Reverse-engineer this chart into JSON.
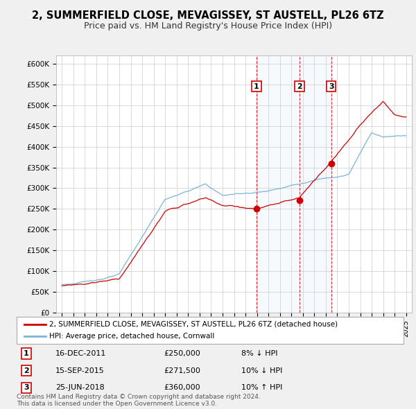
{
  "title": "2, SUMMERFIELD CLOSE, MEVAGISSEY, ST AUSTELL, PL26 6TZ",
  "subtitle": "Price paid vs. HM Land Registry's House Price Index (HPI)",
  "title_fontsize": 10.5,
  "subtitle_fontsize": 9,
  "ylim": [
    0,
    620000
  ],
  "yticks": [
    0,
    50000,
    100000,
    150000,
    200000,
    250000,
    300000,
    350000,
    400000,
    450000,
    500000,
    550000,
    600000
  ],
  "ytick_labels": [
    "£0",
    "£50K",
    "£100K",
    "£150K",
    "£200K",
    "£250K",
    "£300K",
    "£350K",
    "£400K",
    "£450K",
    "£500K",
    "£550K",
    "£600K"
  ],
  "transactions": [
    {
      "num": 1,
      "date": "16-DEC-2011",
      "price": 250000,
      "x_year": 2011.96,
      "hpi_rel": "8% ↓ HPI"
    },
    {
      "num": 2,
      "date": "15-SEP-2015",
      "price": 271500,
      "x_year": 2015.71,
      "hpi_rel": "10% ↓ HPI"
    },
    {
      "num": 3,
      "date": "25-JUN-2018",
      "price": 360000,
      "x_year": 2018.48,
      "hpi_rel": "10% ↑ HPI"
    }
  ],
  "hpi_color": "#7ab4d8",
  "price_color": "#cc0000",
  "background_color": "#f0f0f0",
  "plot_bg_color": "#ffffff",
  "shade_color": "#ddeeff",
  "legend_label_price": "2, SUMMERFIELD CLOSE, MEVAGISSEY, ST AUSTELL, PL26 6TZ (detached house)",
  "legend_label_hpi": "HPI: Average price, detached house, Cornwall",
  "footnote": "Contains HM Land Registry data © Crown copyright and database right 2024.\nThis data is licensed under the Open Government Licence v3.0.",
  "xlim_start": 1994.5,
  "xlim_end": 2025.5
}
